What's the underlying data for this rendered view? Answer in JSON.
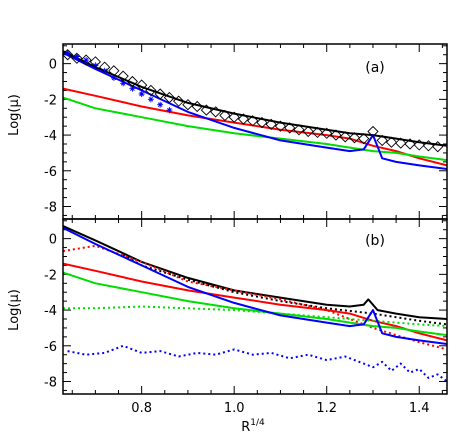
{
  "chart_data": [
    {
      "type": "line",
      "panel_label": "(a)",
      "ylabel": "Log(μ)",
      "xlim": [
        0.63,
        1.46
      ],
      "ylim": [
        -8.7,
        1.1
      ],
      "xticks": [
        0.8,
        1.0,
        1.2,
        1.4
      ],
      "yticks": [
        0,
        -2,
        -4,
        -6,
        -8
      ],
      "grid": false,
      "series": [
        {
          "color": "#000000",
          "style": "solid",
          "x": [
            0.63,
            0.7,
            0.8,
            0.9,
            1.0,
            1.1,
            1.2,
            1.25,
            1.3,
            1.35,
            1.4,
            1.46
          ],
          "y": [
            0.7,
            -0.2,
            -1.3,
            -2.2,
            -2.8,
            -3.3,
            -3.7,
            -3.9,
            -4.0,
            -4.2,
            -4.4,
            -4.6
          ]
        },
        {
          "color": "#ff0000",
          "style": "solid",
          "x": [
            0.63,
            0.7,
            0.8,
            0.9,
            1.0,
            1.1,
            1.2,
            1.25,
            1.3,
            1.35,
            1.4,
            1.46
          ],
          "y": [
            -1.4,
            -1.8,
            -2.4,
            -2.9,
            -3.3,
            -3.7,
            -4.0,
            -4.2,
            -4.6,
            -4.9,
            -5.3,
            -5.7
          ]
        },
        {
          "color": "#00dd00",
          "style": "solid",
          "x": [
            0.63,
            0.7,
            0.8,
            0.9,
            1.0,
            1.1,
            1.2,
            1.25,
            1.3,
            1.35,
            1.4,
            1.46
          ],
          "y": [
            -1.9,
            -2.5,
            -3.0,
            -3.5,
            -3.9,
            -4.2,
            -4.5,
            -4.7,
            -4.9,
            -5.0,
            -5.2,
            -5.4
          ]
        },
        {
          "color": "#0000ff",
          "style": "solid",
          "x": [
            0.63,
            0.7,
            0.8,
            0.9,
            1.0,
            1.1,
            1.2,
            1.25,
            1.28,
            1.3,
            1.32,
            1.35,
            1.4,
            1.46
          ],
          "y": [
            0.6,
            -0.3,
            -1.5,
            -2.7,
            -3.6,
            -4.3,
            -4.7,
            -4.9,
            -4.8,
            -4.0,
            -5.3,
            -5.5,
            -5.7,
            -5.9
          ]
        }
      ],
      "markers": [
        {
          "color": "#0000ff",
          "symbol": "star",
          "x": [
            0.64,
            0.66,
            0.68,
            0.7,
            0.72,
            0.74,
            0.76,
            0.78,
            0.8,
            0.82,
            0.84,
            0.86
          ],
          "y": [
            0.6,
            0.4,
            0.2,
            -0.1,
            -0.4,
            -0.8,
            -1.1,
            -1.4,
            -1.7,
            -2.0,
            -2.3,
            -2.6
          ]
        },
        {
          "color": "#000000",
          "symbol": "diamond",
          "x": [
            0.64,
            0.66,
            0.68,
            0.7,
            0.72,
            0.74,
            0.76,
            0.78,
            0.8,
            0.82,
            0.84,
            0.86,
            0.88,
            0.9,
            0.92,
            0.94,
            0.96,
            0.98,
            1.0,
            1.02,
            1.04,
            1.06,
            1.08,
            1.1,
            1.12,
            1.14,
            1.16,
            1.18,
            1.2,
            1.22,
            1.24,
            1.26,
            1.28,
            1.3,
            1.32,
            1.34,
            1.36,
            1.38,
            1.4,
            1.42,
            1.44
          ],
          "y": [
            0.5,
            0.3,
            0.2,
            0.1,
            -0.2,
            -0.4,
            -0.7,
            -1.0,
            -1.2,
            -1.5,
            -1.7,
            -1.9,
            -2.1,
            -2.3,
            -2.4,
            -2.6,
            -2.7,
            -2.9,
            -3.0,
            -3.1,
            -3.2,
            -3.3,
            -3.4,
            -3.5,
            -3.6,
            -3.7,
            -3.8,
            -3.85,
            -3.9,
            -4.0,
            -4.1,
            -4.15,
            -4.2,
            -3.8,
            -4.3,
            -4.4,
            -4.45,
            -4.5,
            -4.55,
            -4.6,
            -4.65
          ]
        }
      ]
    },
    {
      "type": "line",
      "panel_label": "(b)",
      "xlabel": "R",
      "xlabel_sup": "1/4",
      "ylabel": "Log(μ)",
      "xlim": [
        0.63,
        1.46
      ],
      "ylim": [
        -8.7,
        1.1
      ],
      "xticks": [
        0.8,
        1.0,
        1.2,
        1.4
      ],
      "yticks": [
        0,
        -2,
        -4,
        -6,
        -8
      ],
      "grid": false,
      "series": [
        {
          "color": "#000000",
          "style": "solid",
          "x": [
            0.63,
            0.7,
            0.8,
            0.9,
            1.0,
            1.1,
            1.2,
            1.25,
            1.28,
            1.29,
            1.31,
            1.35,
            1.4,
            1.46
          ],
          "y": [
            0.7,
            -0.1,
            -1.3,
            -2.2,
            -2.9,
            -3.3,
            -3.7,
            -3.8,
            -3.7,
            -3.4,
            -4.0,
            -4.2,
            -4.4,
            -4.5
          ]
        },
        {
          "color": "#000000",
          "style": "dotted",
          "x": [
            0.76,
            0.8,
            0.9,
            1.0,
            1.1,
            1.2,
            1.3,
            1.4,
            1.46
          ],
          "y": [
            -0.9,
            -1.5,
            -2.3,
            -3.0,
            -3.5,
            -3.9,
            -4.2,
            -4.6,
            -4.8
          ]
        },
        {
          "color": "#ff0000",
          "style": "solid",
          "x": [
            0.63,
            0.7,
            0.8,
            0.9,
            1.0,
            1.1,
            1.2,
            1.25,
            1.3,
            1.35,
            1.4,
            1.46
          ],
          "y": [
            -1.4,
            -1.8,
            -2.4,
            -2.9,
            -3.3,
            -3.7,
            -4.0,
            -4.2,
            -4.6,
            -4.9,
            -5.3,
            -5.7
          ]
        },
        {
          "color": "#ff0000",
          "style": "dotted",
          "x": [
            0.63,
            0.7,
            0.8,
            0.9,
            1.0,
            1.1,
            1.2,
            1.25,
            1.3,
            1.35,
            1.4,
            1.46
          ],
          "y": [
            -0.7,
            -0.4,
            -1.3,
            -2.4,
            -2.9,
            -3.4,
            -4.0,
            -4.5,
            -5.0,
            -5.4,
            -5.8,
            -6.2
          ]
        },
        {
          "color": "#00dd00",
          "style": "solid",
          "x": [
            0.63,
            0.7,
            0.8,
            0.9,
            1.0,
            1.1,
            1.2,
            1.25,
            1.3,
            1.35,
            1.4,
            1.46
          ],
          "y": [
            -1.9,
            -2.5,
            -3.0,
            -3.5,
            -3.9,
            -4.2,
            -4.5,
            -4.7,
            -4.9,
            -5.0,
            -5.2,
            -5.4
          ]
        },
        {
          "color": "#00dd00",
          "style": "dotted",
          "x": [
            0.63,
            0.7,
            0.8,
            0.9,
            1.0,
            1.1,
            1.2,
            1.3,
            1.4,
            1.46
          ],
          "y": [
            -3.9,
            -3.9,
            -3.8,
            -3.9,
            -4.0,
            -4.2,
            -4.4,
            -4.6,
            -4.8,
            -4.9
          ]
        },
        {
          "color": "#0000ff",
          "style": "solid",
          "x": [
            0.63,
            0.7,
            0.8,
            0.9,
            1.0,
            1.1,
            1.2,
            1.25,
            1.28,
            1.3,
            1.32,
            1.35,
            1.4,
            1.46
          ],
          "y": [
            0.6,
            -0.3,
            -1.5,
            -2.7,
            -3.6,
            -4.3,
            -4.7,
            -4.9,
            -4.8,
            -4.0,
            -5.3,
            -5.5,
            -5.7,
            -5.9
          ]
        },
        {
          "color": "#0000ff",
          "style": "dotted",
          "x": [
            0.64,
            0.68,
            0.72,
            0.76,
            0.8,
            0.84,
            0.88,
            0.92,
            0.96,
            1.0,
            1.04,
            1.08,
            1.12,
            1.16,
            1.2,
            1.24,
            1.28,
            1.3,
            1.32,
            1.34,
            1.36,
            1.38,
            1.4,
            1.42,
            1.44,
            1.46
          ],
          "y": [
            -6.3,
            -6.5,
            -6.4,
            -6.0,
            -6.4,
            -6.3,
            -6.6,
            -6.4,
            -6.5,
            -6.2,
            -6.5,
            -6.4,
            -6.7,
            -6.5,
            -6.8,
            -6.6,
            -7.0,
            -7.2,
            -6.9,
            -7.4,
            -7.0,
            -7.5,
            -7.3,
            -7.8,
            -7.6,
            -8.0
          ]
        }
      ]
    }
  ]
}
